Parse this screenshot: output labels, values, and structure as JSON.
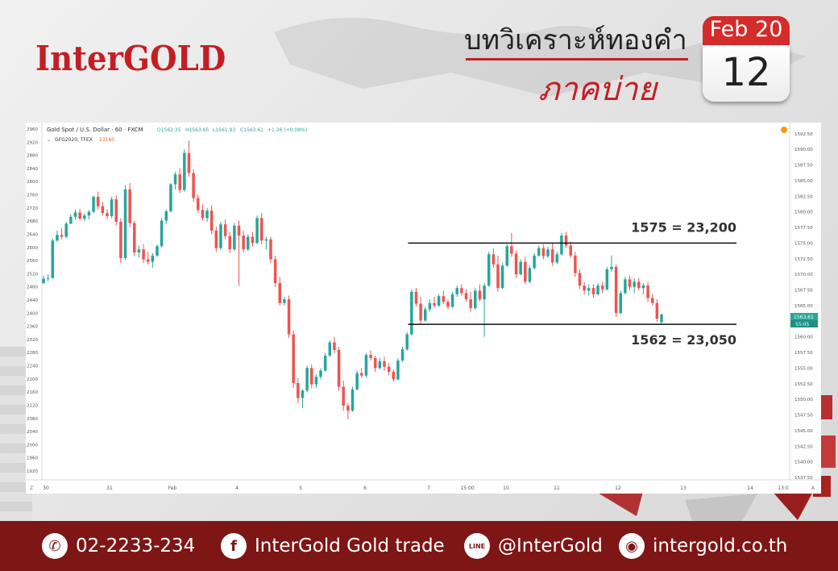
{
  "header": {
    "brand": "InterGOLD",
    "title_line1": "บทวิเคราะห์ทองคำ",
    "title_line2": "ภาคบ่าย",
    "calendar_month": "Feb 20",
    "calendar_day": "12"
  },
  "chart_data": {
    "type": "candlestick",
    "symbol_line": "Gold Spot / U.S. Dollar · 60 · FXCM",
    "ohlc_readout": {
      "O": "O1562.35",
      "H": "H1563.65",
      "L": "L1561.93",
      "C": "C1563.61",
      "chg": "+1.26 (+0.08%)"
    },
    "sub_symbol": "GFG2020, TFEX",
    "sub_value": "23180",
    "left_axis_ticks": [
      "2960",
      "2920",
      "2880",
      "2840",
      "2800",
      "2760",
      "2720",
      "2680",
      "2640",
      "2600",
      "2560",
      "2520",
      "2480",
      "2440",
      "2400",
      "2360",
      "2320",
      "2280",
      "2240",
      "2200",
      "2160",
      "2120",
      "2080",
      "2040",
      "2000",
      "1960",
      "1920"
    ],
    "right_axis_ticks": [
      "1592.50",
      "1590.00",
      "1587.50",
      "1585.00",
      "1582.50",
      "1580.00",
      "1577.50",
      "1575.00",
      "1572.50",
      "1570.00",
      "1567.50",
      "1565.00",
      "1562.50",
      "1560.00",
      "1557.50",
      "1555.00",
      "1552.50",
      "1550.00",
      "1547.50",
      "1545.00",
      "1542.50",
      "1540.00",
      "1537.50"
    ],
    "x_ticks": [
      "30",
      "31",
      "Feb",
      "4",
      "5",
      "6",
      "7",
      "15:00",
      "10",
      "11",
      "12",
      "13",
      "14",
      "13:0"
    ],
    "right_ylim": [
      1537.5,
      1593.5
    ],
    "last_price": "1563.61",
    "countdown": "55:05",
    "levels": [
      {
        "price": 1575,
        "label": "1575 = 23,200"
      },
      {
        "price": 1562,
        "label": "1562 = 23,050"
      }
    ],
    "candles": [
      [
        1568.6,
        1569.8,
        1568.4,
        1569.3
      ],
      [
        1569.3,
        1570.0,
        1568.9,
        1569.4
      ],
      [
        1569.4,
        1575.8,
        1569.3,
        1575.4
      ],
      [
        1575.4,
        1577.0,
        1575.2,
        1576.3
      ],
      [
        1576.3,
        1577.4,
        1575.6,
        1576.0
      ],
      [
        1576.0,
        1578.4,
        1575.8,
        1578.1
      ],
      [
        1578.1,
        1579.6,
        1578.0,
        1579.2
      ],
      [
        1579.2,
        1580.4,
        1578.8,
        1579.9
      ],
      [
        1579.9,
        1580.5,
        1578.6,
        1578.9
      ],
      [
        1578.9,
        1579.8,
        1578.5,
        1579.4
      ],
      [
        1579.4,
        1580.3,
        1578.8,
        1580.0
      ],
      [
        1580.0,
        1582.6,
        1579.8,
        1582.4
      ],
      [
        1582.4,
        1583.2,
        1580.4,
        1580.9
      ],
      [
        1580.9,
        1581.6,
        1579.4,
        1579.8
      ],
      [
        1579.8,
        1580.4,
        1578.8,
        1579.3
      ],
      [
        1579.3,
        1582.4,
        1579.0,
        1582.0
      ],
      [
        1582.0,
        1582.6,
        1577.8,
        1578.4
      ],
      [
        1578.4,
        1579.0,
        1571.8,
        1572.6
      ],
      [
        1572.6,
        1584.2,
        1572.3,
        1583.6
      ],
      [
        1583.6,
        1584.6,
        1577.5,
        1578.2
      ],
      [
        1578.2,
        1578.6,
        1572.9,
        1573.5
      ],
      [
        1573.5,
        1574.6,
        1572.7,
        1574.0
      ],
      [
        1574.0,
        1574.8,
        1571.8,
        1572.4
      ],
      [
        1572.4,
        1573.6,
        1571.6,
        1572.0
      ],
      [
        1572.0,
        1573.4,
        1571.0,
        1573.0
      ],
      [
        1573.0,
        1574.8,
        1572.8,
        1574.5
      ],
      [
        1574.5,
        1579.0,
        1574.3,
        1578.6
      ],
      [
        1578.6,
        1580.4,
        1578.0,
        1580.1
      ],
      [
        1580.1,
        1584.6,
        1579.9,
        1584.4
      ],
      [
        1584.4,
        1586.4,
        1583.6,
        1586.0
      ],
      [
        1586.0,
        1587.0,
        1583.0,
        1583.5
      ],
      [
        1583.5,
        1590.0,
        1583.2,
        1589.4
      ],
      [
        1589.4,
        1591.4,
        1585.6,
        1586.2
      ],
      [
        1586.2,
        1586.8,
        1581.6,
        1582.2
      ],
      [
        1582.2,
        1582.8,
        1579.8,
        1580.3
      ],
      [
        1580.3,
        1581.2,
        1578.6,
        1579.0
      ],
      [
        1579.0,
        1580.6,
        1578.4,
        1580.2
      ],
      [
        1580.2,
        1581.0,
        1576.4,
        1577.0
      ],
      [
        1577.0,
        1577.6,
        1573.6,
        1574.2
      ],
      [
        1574.2,
        1578.4,
        1573.9,
        1578.0
      ],
      [
        1578.0,
        1578.8,
        1575.6,
        1576.1
      ],
      [
        1576.1,
        1576.8,
        1573.4,
        1574.0
      ],
      [
        1574.0,
        1578.2,
        1573.7,
        1577.8
      ],
      [
        1577.8,
        1578.6,
        1568.2,
        1576.2
      ],
      [
        1576.2,
        1577.0,
        1573.5,
        1574.0
      ],
      [
        1574.0,
        1576.4,
        1573.7,
        1576.0
      ],
      [
        1576.0,
        1576.8,
        1574.4,
        1575.0
      ],
      [
        1575.0,
        1579.4,
        1574.8,
        1579.0
      ],
      [
        1579.0,
        1579.8,
        1574.8,
        1575.4
      ],
      [
        1575.4,
        1576.0,
        1574.0,
        1575.6
      ],
      [
        1575.6,
        1576.0,
        1571.8,
        1572.4
      ],
      [
        1572.4,
        1573.0,
        1568.0,
        1568.6
      ],
      [
        1568.6,
        1569.6,
        1565.0,
        1565.4
      ],
      [
        1565.4,
        1566.4,
        1565.0,
        1566.0
      ],
      [
        1566.0,
        1566.6,
        1559.8,
        1560.4
      ],
      [
        1560.4,
        1561.0,
        1551.8,
        1552.6
      ],
      [
        1552.6,
        1553.4,
        1549.4,
        1550.2
      ],
      [
        1550.2,
        1551.6,
        1548.6,
        1551.4
      ],
      [
        1551.4,
        1555.4,
        1551.1,
        1555.0
      ],
      [
        1555.0,
        1555.6,
        1551.8,
        1552.4
      ],
      [
        1552.4,
        1554.0,
        1551.8,
        1553.6
      ],
      [
        1553.6,
        1555.0,
        1553.2,
        1554.6
      ],
      [
        1554.6,
        1557.4,
        1554.4,
        1557.0
      ],
      [
        1557.0,
        1559.4,
        1556.8,
        1559.1
      ],
      [
        1559.1,
        1560.0,
        1557.4,
        1557.9
      ],
      [
        1557.9,
        1558.4,
        1551.4,
        1552.0
      ],
      [
        1552.0,
        1553.0,
        1548.2,
        1549.0
      ],
      [
        1549.0,
        1549.4,
        1546.8,
        1548.2
      ],
      [
        1548.2,
        1552.0,
        1548.0,
        1551.6
      ],
      [
        1551.6,
        1554.6,
        1551.4,
        1554.2
      ],
      [
        1554.2,
        1555.0,
        1553.4,
        1553.8
      ],
      [
        1553.8,
        1557.4,
        1553.5,
        1557.1
      ],
      [
        1557.1,
        1557.8,
        1556.2,
        1556.6
      ],
      [
        1556.6,
        1557.0,
        1554.4,
        1555.0
      ],
      [
        1555.0,
        1556.6,
        1554.8,
        1556.1
      ],
      [
        1556.1,
        1556.8,
        1554.6,
        1555.2
      ],
      [
        1555.2,
        1555.8,
        1553.8,
        1554.4
      ],
      [
        1554.4,
        1554.8,
        1552.8,
        1553.2
      ],
      [
        1553.2,
        1556.6,
        1553.0,
        1556.2
      ],
      [
        1556.2,
        1558.4,
        1556.0,
        1558.0
      ],
      [
        1558.0,
        1560.8,
        1557.8,
        1560.4
      ],
      [
        1560.4,
        1567.6,
        1560.2,
        1567.2
      ],
      [
        1567.2,
        1567.8,
        1564.8,
        1565.3
      ],
      [
        1565.3,
        1566.4,
        1562.0,
        1562.6
      ],
      [
        1562.6,
        1564.8,
        1562.4,
        1564.4
      ],
      [
        1564.4,
        1566.0,
        1564.0,
        1565.4
      ],
      [
        1565.4,
        1566.4,
        1564.6,
        1565.0
      ],
      [
        1565.0,
        1566.8,
        1564.8,
        1566.5
      ],
      [
        1566.5,
        1567.4,
        1565.2,
        1565.6
      ],
      [
        1565.6,
        1566.0,
        1564.4,
        1564.8
      ],
      [
        1564.8,
        1567.2,
        1564.6,
        1566.8
      ],
      [
        1566.8,
        1568.2,
        1566.4,
        1567.8
      ],
      [
        1567.8,
        1568.4,
        1566.6,
        1567.0
      ],
      [
        1567.0,
        1567.6,
        1565.6,
        1566.0
      ],
      [
        1566.0,
        1567.2,
        1564.0,
        1564.6
      ],
      [
        1564.6,
        1567.8,
        1564.3,
        1567.4
      ],
      [
        1567.4,
        1568.4,
        1565.6,
        1566.0
      ],
      [
        1566.0,
        1568.6,
        1560.0,
        1568.2
      ],
      [
        1568.2,
        1573.6,
        1568.0,
        1573.2
      ],
      [
        1573.2,
        1574.2,
        1571.0,
        1571.6
      ],
      [
        1571.6,
        1573.0,
        1567.2,
        1567.8
      ],
      [
        1567.8,
        1571.8,
        1567.6,
        1571.4
      ],
      [
        1571.4,
        1574.8,
        1571.2,
        1574.5
      ],
      [
        1574.5,
        1576.6,
        1572.8,
        1573.3
      ],
      [
        1573.3,
        1573.8,
        1569.4,
        1570.0
      ],
      [
        1570.0,
        1572.4,
        1569.8,
        1572.0
      ],
      [
        1572.0,
        1572.8,
        1568.4,
        1568.8
      ],
      [
        1568.8,
        1571.4,
        1568.6,
        1571.0
      ],
      [
        1571.0,
        1573.4,
        1570.8,
        1573.0
      ],
      [
        1573.0,
        1574.6,
        1572.8,
        1574.2
      ],
      [
        1574.2,
        1574.8,
        1572.4,
        1572.9
      ],
      [
        1572.9,
        1574.4,
        1572.6,
        1574.0
      ],
      [
        1574.0,
        1575.0,
        1571.4,
        1571.9
      ],
      [
        1571.9,
        1573.6,
        1571.6,
        1573.2
      ],
      [
        1573.2,
        1576.6,
        1573.0,
        1576.2
      ],
      [
        1576.2,
        1576.8,
        1574.2,
        1574.6
      ],
      [
        1574.6,
        1575.2,
        1572.6,
        1573.0
      ],
      [
        1573.0,
        1573.6,
        1569.6,
        1570.2
      ],
      [
        1570.2,
        1570.8,
        1567.6,
        1568.2
      ],
      [
        1568.2,
        1568.8,
        1566.8,
        1567.4
      ],
      [
        1567.4,
        1568.4,
        1566.6,
        1567.8
      ],
      [
        1567.8,
        1568.4,
        1566.2,
        1566.8
      ],
      [
        1566.8,
        1568.6,
        1566.6,
        1568.2
      ],
      [
        1568.2,
        1568.8,
        1567.0,
        1567.6
      ],
      [
        1567.6,
        1571.2,
        1567.4,
        1570.8
      ],
      [
        1570.8,
        1573.0,
        1570.4,
        1571.2
      ],
      [
        1571.2,
        1571.6,
        1563.2,
        1563.8
      ],
      [
        1563.8,
        1567.4,
        1563.6,
        1567.0
      ],
      [
        1567.0,
        1569.6,
        1566.8,
        1569.2
      ],
      [
        1569.2,
        1569.8,
        1567.4,
        1568.0
      ],
      [
        1568.0,
        1569.4,
        1567.0,
        1568.8
      ],
      [
        1568.8,
        1569.4,
        1567.4,
        1567.8
      ],
      [
        1567.8,
        1568.6,
        1566.8,
        1568.2
      ],
      [
        1568.2,
        1568.8,
        1565.6,
        1566.2
      ],
      [
        1566.2,
        1566.8,
        1565.0,
        1565.4
      ],
      [
        1565.4,
        1566.0,
        1562.4,
        1562.9
      ],
      [
        1562.35,
        1563.65,
        1561.93,
        1563.61
      ]
    ]
  },
  "footer": {
    "phone": "02-2233-234",
    "facebook": "InterGold Gold trade",
    "line": "@InterGold",
    "website": "intergold.co.th",
    "line_badge": "LINE"
  }
}
